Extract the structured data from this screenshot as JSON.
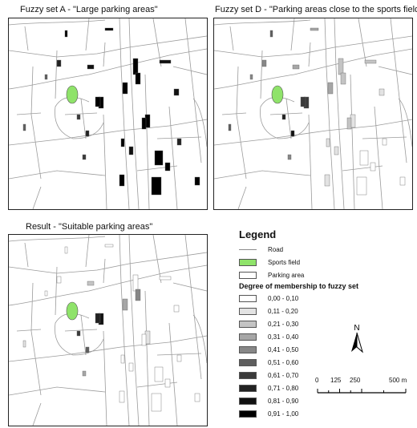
{
  "maps": [
    {
      "title": "Fuzzy set A - \"Large parking areas\"",
      "scheme": "A"
    },
    {
      "title": "Fuzzy set D - \"Parking areas close to the sports field\"",
      "scheme": "D"
    },
    {
      "title": "Result - \"Suitable parking areas\"",
      "scheme": "R"
    }
  ],
  "legend": {
    "title": "Legend",
    "items": [
      {
        "label": "Road",
        "kind": "line",
        "color": "#8a8a8a"
      },
      {
        "label": "Sports field",
        "kind": "swatch",
        "color": "#8fe36a"
      },
      {
        "label": "Parking area",
        "kind": "swatch",
        "color": "#ffffff"
      }
    ],
    "degree_title": "Degree of membership to fuzzy set",
    "classes": [
      {
        "label": "0,00 - 0,10",
        "color": "#ffffff"
      },
      {
        "label": "0,11 - 0,20",
        "color": "#e3e3e3"
      },
      {
        "label": "0,21 - 0,30",
        "color": "#c4c4c4"
      },
      {
        "label": "0,31 - 0,40",
        "color": "#a6a6a6"
      },
      {
        "label": "0,41 - 0,50",
        "color": "#878787"
      },
      {
        "label": "0,51 - 0,60",
        "color": "#5e5e5e"
      },
      {
        "label": "0,61 - 0,70",
        "color": "#3a3a3a"
      },
      {
        "label": "0,71 - 0,80",
        "color": "#222222"
      },
      {
        "label": "0,81 - 0,90",
        "color": "#111111"
      },
      {
        "label": "0,91 - 1,00",
        "color": "#000000"
      }
    ]
  },
  "north": {
    "label": "N"
  },
  "scale": {
    "ticks": [
      "0",
      "125",
      "250",
      "500 m"
    ]
  },
  "colors": {
    "road": "#9b9b9b",
    "sports_field": "#8fe36a",
    "frame": "#222222"
  }
}
